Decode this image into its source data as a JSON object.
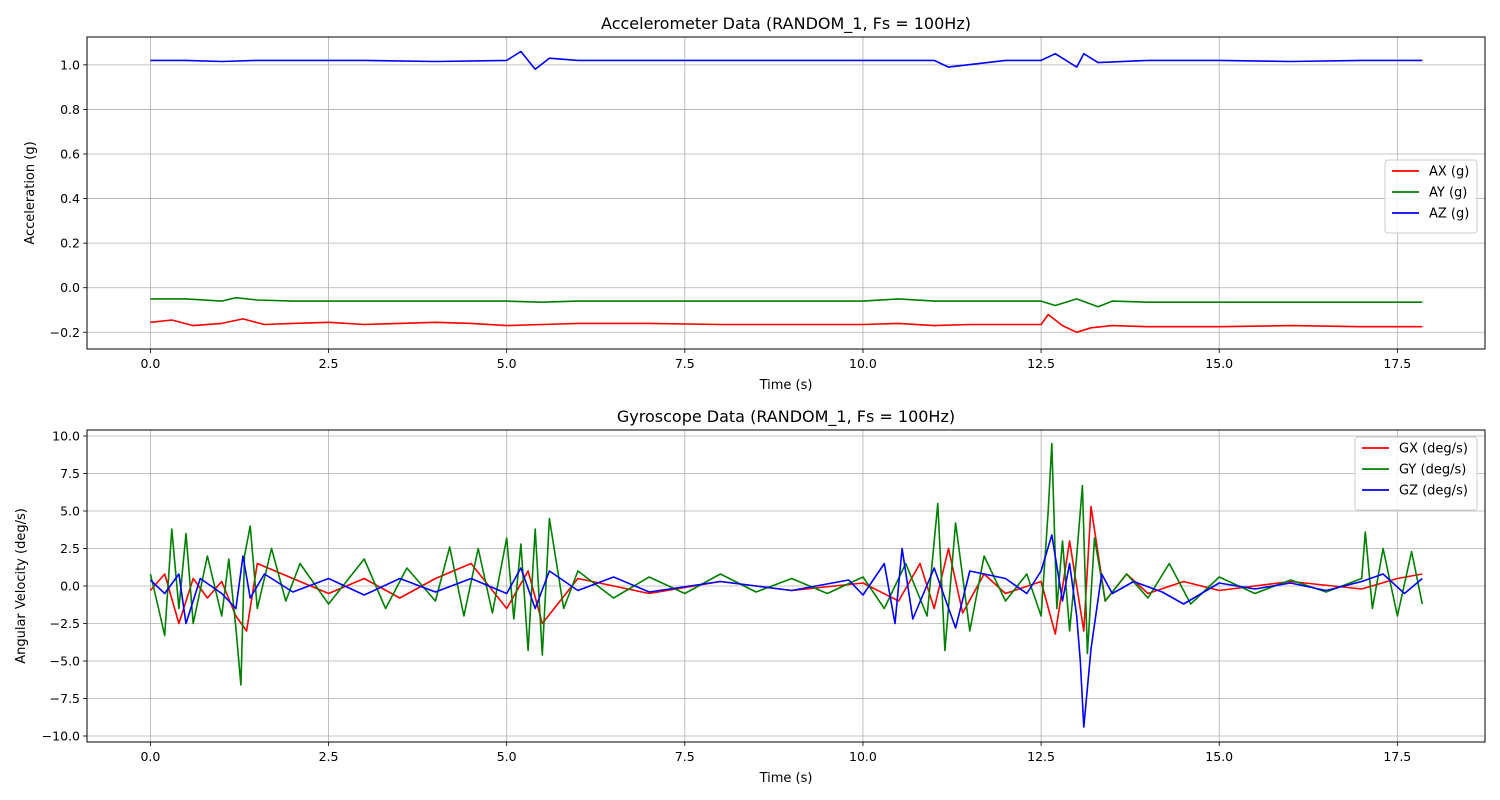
{
  "chart_data": [
    {
      "type": "line",
      "title": "Accelerometer Data (RANDOM_1, Fs = 100Hz)",
      "xlabel": "Time (s)",
      "ylabel": "Acceleration (g)",
      "xlim": [
        -0.89,
        18.73
      ],
      "ylim": [
        -0.275,
        1.125
      ],
      "xticks": [
        0,
        2.5,
        5,
        7.5,
        10,
        12.5,
        15,
        17.5
      ],
      "xtick_labels": [
        "0.0",
        "2.5",
        "5.0",
        "7.5",
        "10.0",
        "12.5",
        "15.0",
        "17.5"
      ],
      "yticks": [
        -0.2,
        0,
        0.2,
        0.4,
        0.6,
        0.8,
        1.0
      ],
      "ytick_labels": [
        "−0.2",
        "0.0",
        "0.2",
        "0.4",
        "0.6",
        "0.8",
        "1.0"
      ],
      "grid": true,
      "legend_position": "center-right",
      "series": [
        {
          "name": "AX (g)",
          "color": "#ff0000",
          "x": [
            0,
            0.3,
            0.6,
            1.0,
            1.3,
            1.6,
            2.0,
            2.5,
            3.0,
            3.5,
            4.0,
            4.5,
            5.0,
            5.5,
            6.0,
            7.0,
            8.0,
            9.0,
            10.0,
            10.5,
            11.0,
            11.5,
            12.0,
            12.5,
            12.6,
            12.8,
            13.0,
            13.2,
            13.5,
            14.0,
            15.0,
            16.0,
            17.0,
            17.85
          ],
          "y": [
            -0.155,
            -0.145,
            -0.17,
            -0.16,
            -0.14,
            -0.165,
            -0.16,
            -0.155,
            -0.165,
            -0.16,
            -0.155,
            -0.16,
            -0.17,
            -0.165,
            -0.16,
            -0.16,
            -0.165,
            -0.165,
            -0.165,
            -0.16,
            -0.17,
            -0.165,
            -0.165,
            -0.165,
            -0.12,
            -0.17,
            -0.2,
            -0.18,
            -0.17,
            -0.175,
            -0.175,
            -0.17,
            -0.175,
            -0.175
          ]
        },
        {
          "name": "AY (g)",
          "color": "#008000",
          "x": [
            0,
            0.5,
            1.0,
            1.2,
            1.5,
            2.0,
            3.0,
            4.0,
            5.0,
            5.5,
            6.0,
            7.0,
            8.0,
            9.0,
            10.0,
            10.5,
            11.0,
            12.0,
            12.5,
            12.7,
            13.0,
            13.3,
            13.5,
            14.0,
            15.0,
            16.0,
            17.0,
            17.85
          ],
          "y": [
            -0.05,
            -0.05,
            -0.06,
            -0.045,
            -0.055,
            -0.06,
            -0.06,
            -0.06,
            -0.06,
            -0.065,
            -0.06,
            -0.06,
            -0.06,
            -0.06,
            -0.06,
            -0.05,
            -0.06,
            -0.06,
            -0.06,
            -0.08,
            -0.05,
            -0.085,
            -0.06,
            -0.065,
            -0.065,
            -0.065,
            -0.065,
            -0.065
          ]
        },
        {
          "name": "AZ (g)",
          "color": "#0000ff",
          "x": [
            0,
            0.5,
            1.0,
            1.5,
            2.0,
            3.0,
            4.0,
            5.0,
            5.2,
            5.4,
            5.6,
            6.0,
            7.0,
            8.0,
            9.0,
            10.0,
            11.0,
            11.2,
            12.0,
            12.5,
            12.7,
            13.0,
            13.1,
            13.3,
            14.0,
            15.0,
            16.0,
            17.0,
            17.85
          ],
          "y": [
            1.02,
            1.02,
            1.015,
            1.02,
            1.02,
            1.02,
            1.015,
            1.02,
            1.06,
            0.98,
            1.03,
            1.02,
            1.02,
            1.02,
            1.02,
            1.02,
            1.02,
            0.99,
            1.02,
            1.02,
            1.05,
            0.99,
            1.05,
            1.01,
            1.02,
            1.02,
            1.015,
            1.02,
            1.02
          ]
        }
      ]
    },
    {
      "type": "line",
      "title": "Gyroscope Data (RANDOM_1, Fs = 100Hz)",
      "xlabel": "Time (s)",
      "ylabel": "Angular Velocity (deg/s)",
      "xlim": [
        -0.89,
        18.73
      ],
      "ylim": [
        -10.4,
        10.4
      ],
      "xticks": [
        0,
        2.5,
        5,
        7.5,
        10,
        12.5,
        15,
        17.5
      ],
      "xtick_labels": [
        "0.0",
        "2.5",
        "5.0",
        "7.5",
        "10.0",
        "12.5",
        "15.0",
        "17.5"
      ],
      "yticks": [
        -10,
        -7.5,
        -5,
        -2.5,
        0,
        2.5,
        5,
        7.5,
        10
      ],
      "ytick_labels": [
        "−10.0",
        "−7.5",
        "−5.0",
        "−2.5",
        "0.0",
        "2.5",
        "5.0",
        "7.5",
        "10.0"
      ],
      "grid": true,
      "legend_position": "upper-right",
      "series": [
        {
          "name": "GX (deg/s)",
          "color": "#ff0000",
          "x": [
            0,
            0.2,
            0.4,
            0.6,
            0.8,
            1.0,
            1.2,
            1.35,
            1.5,
            2.0,
            2.5,
            3.0,
            3.5,
            4.0,
            4.5,
            5.0,
            5.3,
            5.5,
            6.0,
            7.0,
            8.0,
            9.0,
            10.0,
            10.5,
            10.8,
            11.0,
            11.2,
            11.4,
            11.7,
            12.0,
            12.5,
            12.7,
            12.9,
            13.1,
            13.2,
            13.4,
            13.7,
            14.0,
            14.5,
            15.0,
            16.0,
            17.0,
            17.5,
            17.85
          ],
          "y": [
            -0.3,
            0.8,
            -2.5,
            0.5,
            -0.8,
            0.3,
            -2.0,
            -3.0,
            1.5,
            0.5,
            -0.5,
            0.5,
            -0.8,
            0.5,
            1.5,
            -1.5,
            1.0,
            -2.5,
            0.5,
            -0.5,
            0.3,
            -0.3,
            0.2,
            -1.0,
            1.5,
            -1.5,
            2.5,
            -1.8,
            0.8,
            -0.5,
            0.3,
            -3.2,
            3.0,
            -3.0,
            5.3,
            -1.0,
            0.8,
            -0.5,
            0.3,
            -0.3,
            0.3,
            -0.2,
            0.5,
            0.8
          ]
        },
        {
          "name": "GY (deg/s)",
          "color": "#008000",
          "x": [
            0,
            0.1,
            0.2,
            0.3,
            0.4,
            0.5,
            0.6,
            0.8,
            1.0,
            1.1,
            1.2,
            1.27,
            1.32,
            1.4,
            1.5,
            1.7,
            1.9,
            2.1,
            2.5,
            3.0,
            3.3,
            3.6,
            4.0,
            4.2,
            4.4,
            4.6,
            4.8,
            5.0,
            5.1,
            5.2,
            5.3,
            5.4,
            5.5,
            5.6,
            5.8,
            6.0,
            6.5,
            7.0,
            7.5,
            8.0,
            8.5,
            9.0,
            9.5,
            10.0,
            10.3,
            10.6,
            10.9,
            11.05,
            11.15,
            11.3,
            11.5,
            11.7,
            12.0,
            12.3,
            12.5,
            12.6,
            12.65,
            12.72,
            12.8,
            12.9,
            13.0,
            13.08,
            13.15,
            13.25,
            13.4,
            13.7,
            14.0,
            14.3,
            14.6,
            15.0,
            15.5,
            16.0,
            16.5,
            17.0,
            17.05,
            17.15,
            17.3,
            17.5,
            17.7,
            17.85
          ],
          "y": [
            0.8,
            -1.2,
            -3.3,
            3.8,
            -1.5,
            3.5,
            -2.5,
            2.0,
            -2.0,
            1.8,
            -2.8,
            -6.6,
            2.0,
            4.0,
            -1.5,
            2.5,
            -1.0,
            1.5,
            -1.2,
            1.8,
            -1.5,
            1.2,
            -1.0,
            2.6,
            -2.0,
            2.5,
            -1.8,
            3.2,
            -2.2,
            2.8,
            -4.3,
            3.8,
            -4.6,
            4.5,
            -1.5,
            1.0,
            -0.8,
            0.6,
            -0.5,
            0.8,
            -0.4,
            0.5,
            -0.5,
            0.6,
            -1.5,
            1.5,
            -2.0,
            5.5,
            -4.3,
            4.2,
            -3.0,
            2.0,
            -1.0,
            0.8,
            -2.0,
            5.0,
            9.5,
            -1.5,
            3.0,
            -3.0,
            2.0,
            6.7,
            -4.5,
            3.2,
            -1.0,
            0.8,
            -0.8,
            1.5,
            -1.2,
            0.6,
            -0.5,
            0.4,
            -0.4,
            0.5,
            3.6,
            -1.5,
            2.5,
            -2.0,
            2.3,
            -1.2
          ]
        },
        {
          "name": "GZ (deg/s)",
          "color": "#0000ff",
          "x": [
            0,
            0.2,
            0.4,
            0.5,
            0.7,
            1.0,
            1.2,
            1.3,
            1.4,
            1.6,
            2.0,
            2.5,
            3.0,
            3.5,
            4.0,
            4.5,
            5.0,
            5.2,
            5.4,
            5.6,
            6.0,
            6.5,
            7.0,
            8.0,
            9.0,
            9.8,
            10.0,
            10.3,
            10.45,
            10.55,
            10.7,
            11.0,
            11.3,
            11.5,
            12.0,
            12.3,
            12.5,
            12.65,
            12.8,
            12.9,
            13.0,
            13.05,
            13.1,
            13.2,
            13.35,
            13.5,
            13.8,
            14.2,
            14.5,
            15.0,
            15.5,
            16.0,
            16.5,
            17.0,
            17.3,
            17.6,
            17.85
          ],
          "y": [
            0.4,
            -0.5,
            0.8,
            -2.5,
            0.5,
            -0.5,
            -1.5,
            2.0,
            -0.8,
            0.8,
            -0.4,
            0.5,
            -0.6,
            0.5,
            -0.4,
            0.5,
            -0.5,
            1.2,
            -1.5,
            1.0,
            -0.3,
            0.6,
            -0.4,
            0.3,
            -0.3,
            0.4,
            -0.6,
            1.5,
            -2.5,
            2.5,
            -2.2,
            1.2,
            -2.8,
            1.0,
            0.5,
            -0.5,
            1.0,
            3.4,
            -1.0,
            1.5,
            -2.0,
            -5.0,
            -9.4,
            -4.2,
            0.8,
            -0.5,
            0.3,
            -0.4,
            -1.2,
            0.2,
            -0.2,
            0.2,
            -0.3,
            0.3,
            0.8,
            -0.5,
            0.5
          ]
        }
      ]
    }
  ]
}
